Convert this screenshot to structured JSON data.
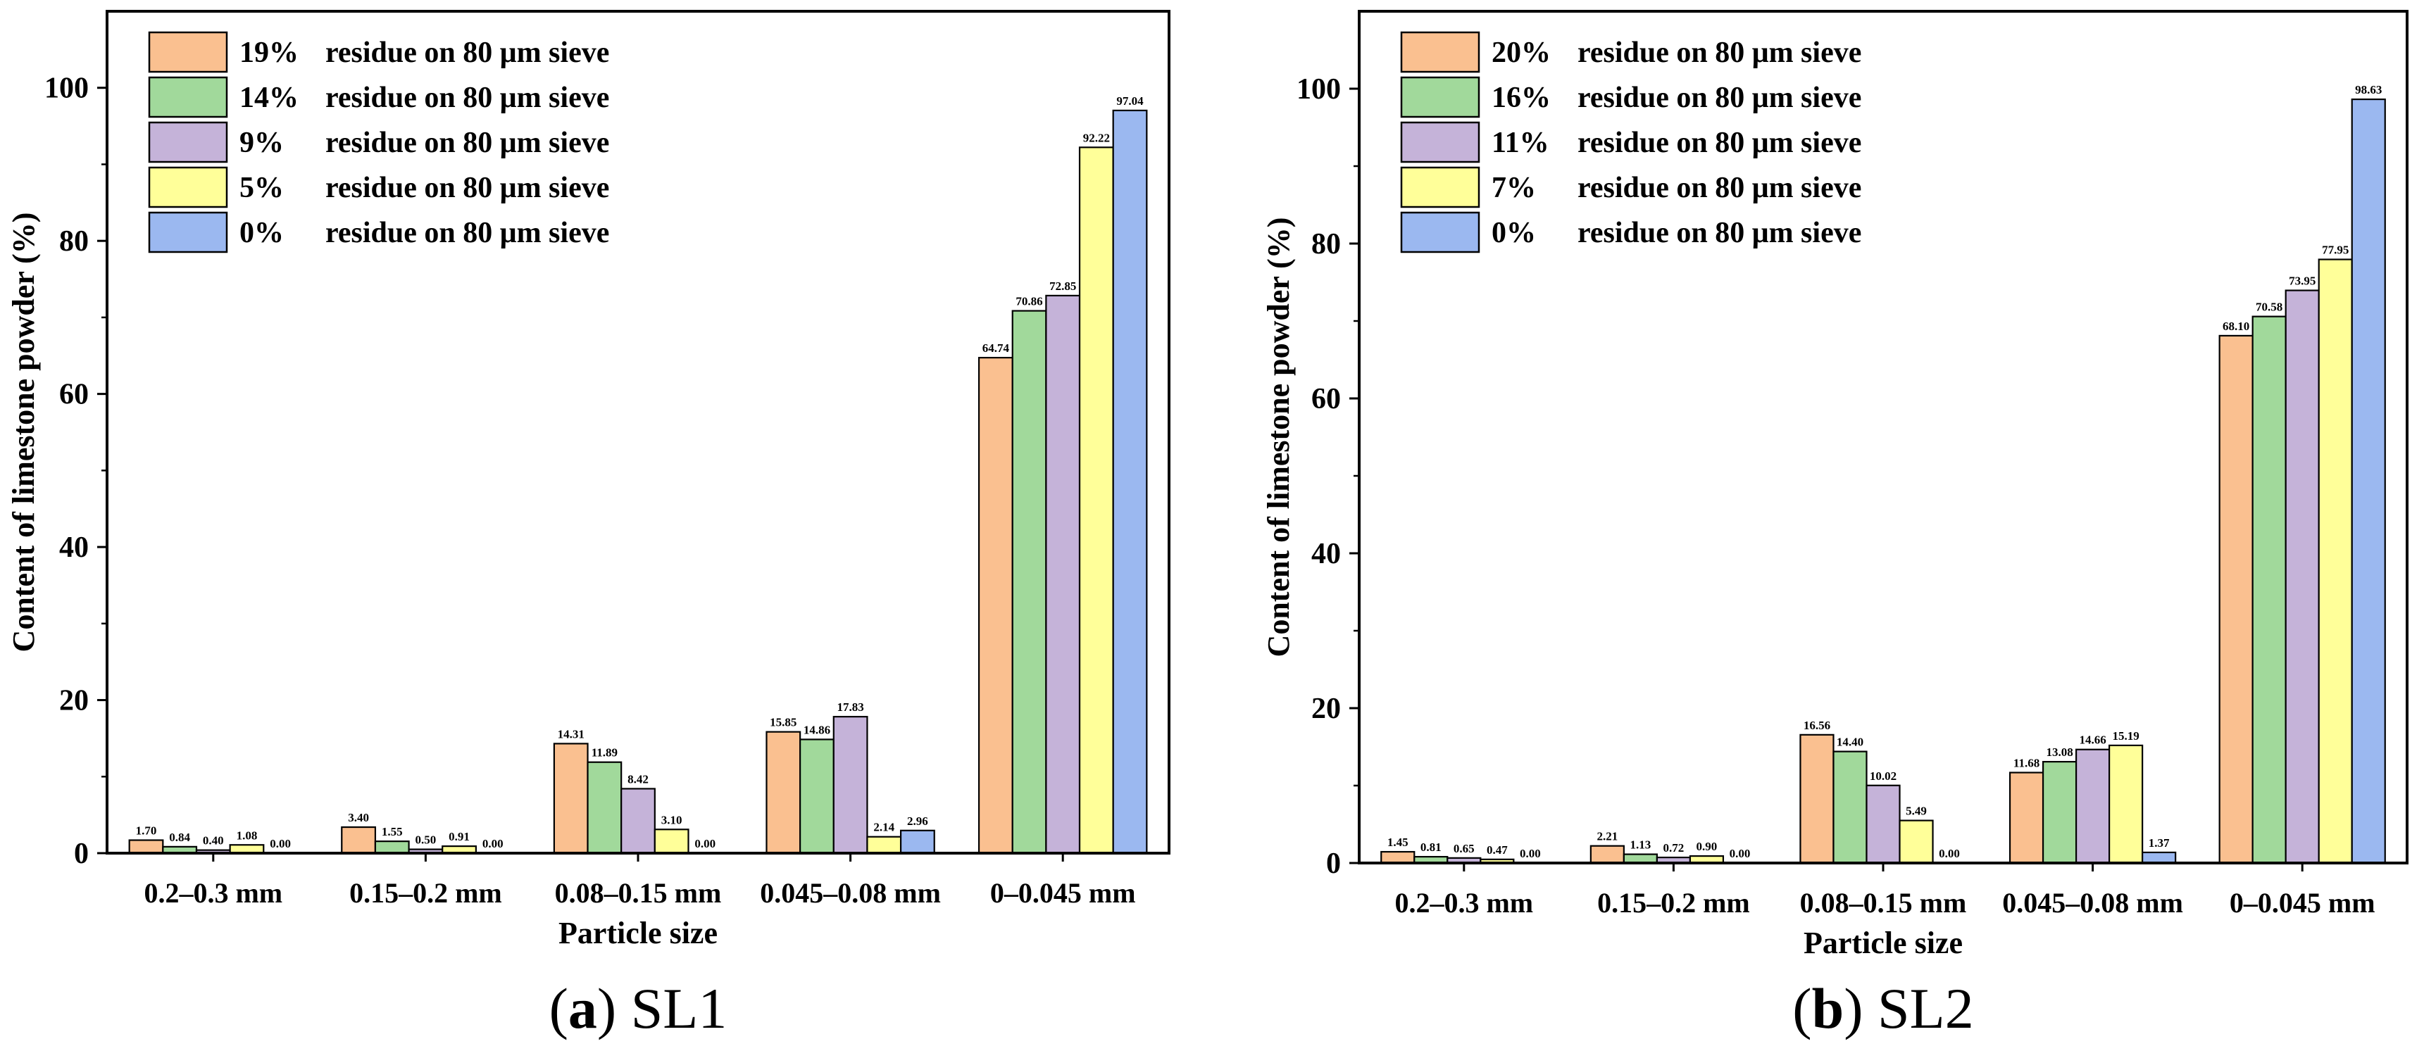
{
  "chart_data": [
    {
      "type": "bar",
      "panel_letter": "a",
      "caption_name": "SL1",
      "xlabel": "Particle size",
      "ylabel": "Content of limestone powder (%)",
      "ylim": [
        0,
        110
      ],
      "yticks": [
        0,
        20,
        40,
        60,
        80,
        100
      ],
      "grid": false,
      "legend_position": "top-left",
      "categories": [
        "0.2–0.3 mm",
        "0.15–0.2 mm",
        "0.08–0.15 mm",
        "0.045–0.08 mm",
        "0–0.045 mm"
      ],
      "series": [
        {
          "pct": "19%",
          "rest": "residue on 80 μm sieve",
          "color": "#FAC090",
          "values": [
            1.7,
            3.4,
            14.31,
            15.85,
            64.74
          ],
          "labels": [
            "1.70",
            "3.40",
            "14.31",
            "15.85",
            "64.74"
          ]
        },
        {
          "pct": "14%",
          "rest": "residue on 80 μm sieve",
          "color": "#A1D99B",
          "values": [
            0.84,
            1.55,
            11.89,
            14.86,
            70.86
          ],
          "labels": [
            "0.84",
            "1.55",
            "11.89",
            "14.86",
            "70.86"
          ]
        },
        {
          "pct": "9%",
          "rest": "residue on 80 μm sieve",
          "color": "#C5B3D9",
          "values": [
            0.4,
            0.5,
            8.42,
            17.83,
            72.85
          ],
          "labels": [
            "0.40",
            "0.50",
            "8.42",
            "17.83",
            "72.85"
          ]
        },
        {
          "pct": "5%",
          "rest": "residue on 80 μm sieve",
          "color": "#FFFF99",
          "values": [
            1.08,
            0.91,
            3.1,
            2.14,
            92.22
          ],
          "labels": [
            "1.08",
            "0.91",
            "3.10",
            "2.14",
            "92.22"
          ]
        },
        {
          "pct": "0%",
          "rest": "residue on 80 μm sieve",
          "color": "#9BB8F0",
          "values": [
            0.0,
            0.0,
            0.0,
            2.96,
            97.04
          ],
          "labels": [
            "0.00",
            "0.00",
            "0.00",
            "2.96",
            "97.04"
          ]
        }
      ]
    },
    {
      "type": "bar",
      "panel_letter": "b",
      "caption_name": "SL2",
      "xlabel": "Particle size",
      "ylabel": "Content of limestone powder  (%)",
      "ylim": [
        0,
        110
      ],
      "yticks": [
        0,
        20,
        40,
        60,
        80,
        100
      ],
      "grid": false,
      "legend_position": "top-left",
      "categories": [
        "0.2–0.3 mm",
        "0.15–0.2 mm",
        "0.08–0.15 mm",
        "0.045–0.08 mm",
        "0–0.045 mm"
      ],
      "series": [
        {
          "pct": "20%",
          "rest": "residue on 80 μm sieve",
          "color": "#FAC090",
          "values": [
            1.45,
            2.21,
            16.56,
            11.68,
            68.1
          ],
          "labels": [
            "1.45",
            "2.21",
            "16.56",
            "11.68",
            "68.10"
          ]
        },
        {
          "pct": "16%",
          "rest": "residue on 80 μm sieve",
          "color": "#A1D99B",
          "values": [
            0.81,
            1.13,
            14.4,
            13.08,
            70.58
          ],
          "labels": [
            "0.81",
            "1.13",
            "14.40",
            "13.08",
            "70.58"
          ]
        },
        {
          "pct": "11%",
          "rest": "residue on 80 μm sieve",
          "color": "#C5B3D9",
          "values": [
            0.65,
            0.72,
            10.02,
            14.66,
            73.95
          ],
          "labels": [
            "0.65",
            "0.72",
            "10.02",
            "14.66",
            "73.95"
          ]
        },
        {
          "pct": "7%",
          "rest": "residue on 80 μm sieve",
          "color": "#FFFF99",
          "values": [
            0.47,
            0.9,
            5.49,
            15.19,
            77.95
          ],
          "labels": [
            "0.47",
            "0.90",
            "5.49",
            "15.19",
            "77.95"
          ]
        },
        {
          "pct": "0%",
          "rest": "residue on 80 μm sieve",
          "color": "#9BB8F0",
          "values": [
            0.0,
            0.0,
            0.0,
            1.37,
            98.63
          ],
          "labels": [
            "0.00",
            "0.00",
            "0.00",
            "1.37",
            "98.63"
          ]
        }
      ]
    }
  ]
}
